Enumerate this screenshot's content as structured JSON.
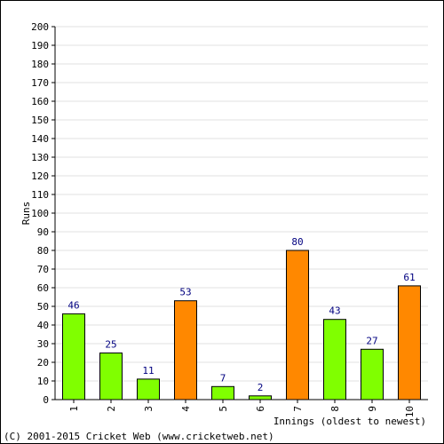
{
  "chart_data": {
    "type": "bar",
    "categories": [
      "1",
      "2",
      "3",
      "4",
      "5",
      "6",
      "7",
      "8",
      "9",
      "10"
    ],
    "values": [
      46,
      25,
      11,
      53,
      7,
      2,
      80,
      43,
      27,
      61
    ],
    "bar_colors": [
      "#80ff00",
      "#80ff00",
      "#80ff00",
      "#ff8800",
      "#80ff00",
      "#80ff00",
      "#ff8800",
      "#80ff00",
      "#80ff00",
      "#ff8800"
    ],
    "xlabel": "Innings (oldest to newest)",
    "ylabel": "Runs",
    "ylim": [
      0,
      200
    ],
    "ytick_step": 10,
    "grid": true
  },
  "footer": {
    "copyright": "(C) 2001-2015 Cricket Web (www.cricketweb.net)"
  }
}
